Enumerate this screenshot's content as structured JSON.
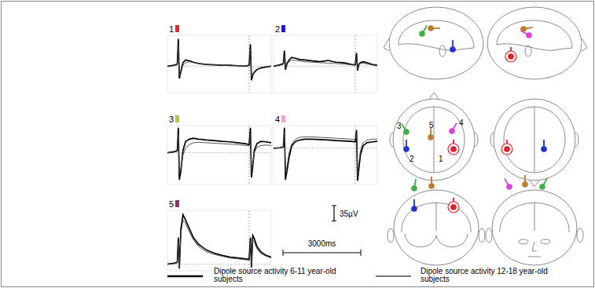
{
  "chart_data": {
    "type": "line",
    "tick_labels": false,
    "legend": "bottom",
    "xlim": [
      0,
      4000
    ],
    "event_x": 3150,
    "baseline": 0,
    "x": [
      0,
      250,
      380,
      420,
      460,
      520,
      600,
      700,
      850,
      1000,
      1200,
      1500,
      1800,
      2100,
      2400,
      2700,
      3000,
      3150,
      3200,
      3240,
      3290,
      3350,
      3450,
      3600,
      3800,
      4000
    ],
    "series": [
      {
        "name": "Dipole source activity 6-11 year-old subjects",
        "color": "#000000",
        "line_style": "solid"
      },
      {
        "name": "Dipole source activity 12-18 year-old subjects",
        "color": "#444444",
        "line_style": "solid"
      }
    ],
    "panels": [
      {
        "title": "1",
        "color": "#e8262b",
        "ylim": [
          -60,
          70
        ],
        "series": [
          {
            "values": [
              0,
              2,
              5,
              62,
              -28,
              -12,
              8,
              14,
              12,
              9,
              6,
              4,
              3,
              2,
              2,
              1,
              0,
              2,
              50,
              -32,
              -20,
              -14,
              -8,
              -4,
              -2,
              0
            ]
          },
          {
            "values": [
              0,
              1,
              3,
              48,
              -22,
              -14,
              2,
              8,
              10,
              8,
              6,
              4,
              3,
              2,
              1,
              1,
              0,
              1,
              38,
              -25,
              -18,
              -12,
              -7,
              -3,
              -1,
              0
            ]
          }
        ]
      },
      {
        "title": "2",
        "color": "#1b1bd9",
        "ylim": [
          -60,
          70
        ],
        "series": [
          {
            "values": [
              0,
              3,
              6,
              35,
              -8,
              6,
              14,
              20,
              18,
              15,
              14,
              12,
              10,
              13,
              9,
              8,
              4,
              3,
              30,
              -10,
              4,
              8,
              10,
              8,
              4,
              2
            ]
          },
          {
            "values": [
              0,
              2,
              4,
              22,
              -4,
              5,
              10,
              14,
              13,
              12,
              10,
              9,
              8,
              7,
              6,
              5,
              3,
              2,
              20,
              -6,
              3,
              6,
              7,
              5,
              3,
              1
            ]
          }
        ]
      },
      {
        "title": "3",
        "color": "#a6cf3a",
        "ylim": [
          -70,
          60
        ],
        "series": [
          {
            "values": [
              0,
              2,
              5,
              55,
              -60,
              -40,
              5,
              25,
              30,
              32,
              30,
              28,
              27,
              25,
              24,
              22,
              20,
              18,
              55,
              -55,
              -30,
              5,
              20,
              25,
              24,
              22
            ]
          },
          {
            "values": [
              0,
              1,
              3,
              40,
              -45,
              -35,
              -5,
              10,
              18,
              22,
              23,
              22,
              21,
              20,
              19,
              18,
              16,
              15,
              42,
              -40,
              -25,
              0,
              12,
              16,
              17,
              16
            ]
          }
        ]
      },
      {
        "title": "4",
        "color": "#f4a6c8",
        "ylim": [
          -80,
          50
        ],
        "series": [
          {
            "values": [
              0,
              1,
              3,
              45,
              -70,
              -50,
              -20,
              5,
              15,
              18,
              20,
              20,
              19,
              18,
              17,
              16,
              15,
              14,
              40,
              -72,
              -45,
              -15,
              5,
              12,
              14,
              15
            ]
          },
          {
            "values": [
              0,
              1,
              2,
              35,
              -55,
              -40,
              -10,
              10,
              20,
              24,
              25,
              25,
              24,
              23,
              22,
              21,
              20,
              19,
              32,
              -58,
              -35,
              -5,
              12,
              18,
              20,
              20
            ]
          }
        ]
      },
      {
        "title": "5",
        "color": "#8a3560",
        "ylim": [
          -15,
          122
        ],
        "series": [
          {
            "values": [
              0,
              2,
              4,
              60,
              -10,
              80,
              112,
              100,
              80,
              60,
              45,
              32,
              25,
              20,
              16,
              14,
              12,
              11,
              60,
              -8,
              65,
              58,
              40,
              28,
              20,
              16
            ]
          },
          {
            "values": [
              0,
              1,
              3,
              50,
              -8,
              70,
              100,
              92,
              72,
              55,
              40,
              28,
              22,
              18,
              14,
              12,
              10,
              9,
              50,
              -5,
              55,
              50,
              35,
              24,
              18,
              14
            ]
          }
        ]
      }
    ],
    "scale_bars": {
      "time": {
        "value": 3000,
        "label": "3000ms"
      },
      "amplitude": {
        "value": 35,
        "label": "35µV"
      }
    }
  },
  "head_diagram": {
    "dipoles": [
      {
        "label": "1",
        "color": "#e31e24"
      },
      {
        "label": "2",
        "color": "#1e32d2"
      },
      {
        "label": "3",
        "color": "#3cb043"
      },
      {
        "label": "4",
        "color": "#e040d8"
      },
      {
        "label": "5",
        "color": "#c07a2e"
      }
    ]
  }
}
